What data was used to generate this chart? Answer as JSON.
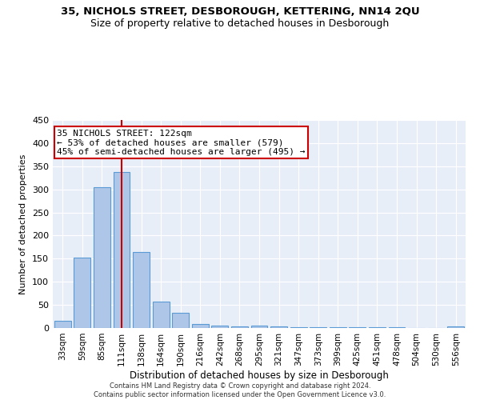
{
  "title1": "35, NICHOLS STREET, DESBOROUGH, KETTERING, NN14 2QU",
  "title2": "Size of property relative to detached houses in Desborough",
  "xlabel": "Distribution of detached houses by size in Desborough",
  "ylabel": "Number of detached properties",
  "footer1": "Contains HM Land Registry data © Crown copyright and database right 2024.",
  "footer2": "Contains public sector information licensed under the Open Government Licence v3.0.",
  "categories": [
    "33sqm",
    "59sqm",
    "85sqm",
    "111sqm",
    "138sqm",
    "164sqm",
    "190sqm",
    "216sqm",
    "242sqm",
    "268sqm",
    "295sqm",
    "321sqm",
    "347sqm",
    "373sqm",
    "399sqm",
    "425sqm",
    "451sqm",
    "478sqm",
    "504sqm",
    "530sqm",
    "556sqm"
  ],
  "values": [
    15,
    152,
    305,
    338,
    165,
    57,
    33,
    8,
    6,
    3,
    5,
    4,
    2,
    1,
    1,
    1,
    1,
    1,
    0,
    0,
    4
  ],
  "bar_color": "#aec6e8",
  "bar_edge_color": "#5b9bd5",
  "highlight_bin_index": 3,
  "red_line_color": "#cc0000",
  "annotation_text1": "35 NICHOLS STREET: 122sqm",
  "annotation_text2": "← 53% of detached houses are smaller (579)",
  "annotation_text3": "45% of semi-detached houses are larger (495) →",
  "annotation_box_color": "#ffffff",
  "annotation_box_edge_color": "#cc0000",
  "ylim": [
    0,
    450
  ],
  "yticks": [
    0,
    50,
    100,
    150,
    200,
    250,
    300,
    350,
    400,
    450
  ],
  "grid_color": "#ffffff",
  "bg_color": "#e8eef8",
  "title1_fontsize": 9.5,
  "title2_fontsize": 9,
  "ylabel_fontsize": 8,
  "xlabel_fontsize": 8.5,
  "footer_fontsize": 6,
  "annot_fontsize": 8
}
